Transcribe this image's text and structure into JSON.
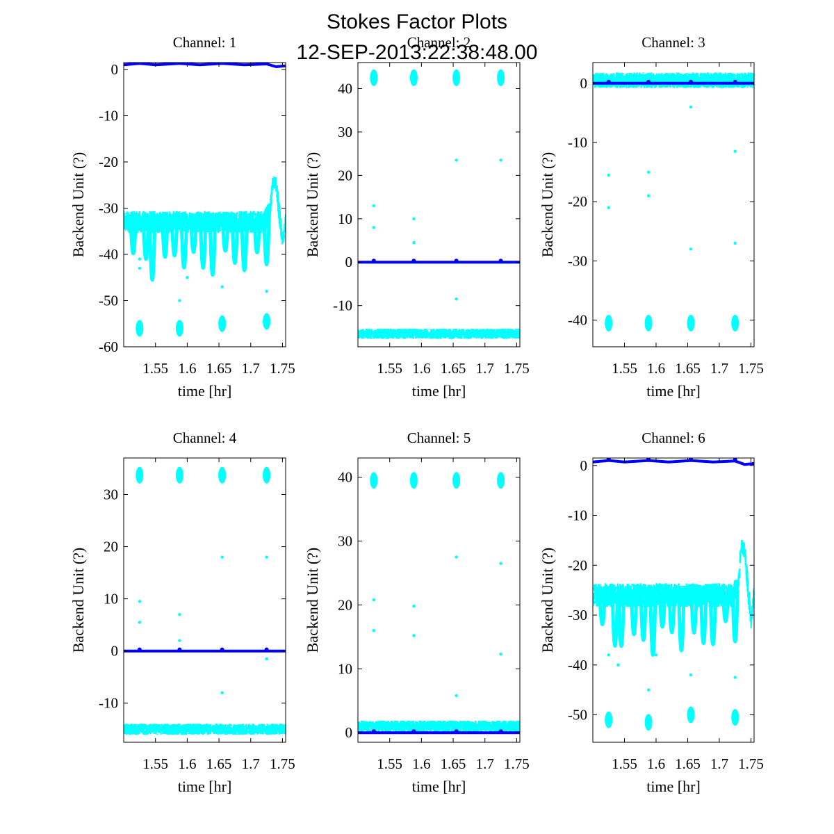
{
  "figure": {
    "title": "Stokes Factor Plots",
    "subtitle": "12-SEP-2013:22:38:48.00"
  },
  "colors": {
    "raw": "#00ffff",
    "smoothed": "#0000ff",
    "axes": "#000000",
    "background": "#ffffff"
  },
  "chart_data": [
    {
      "type": "scatter",
      "title": "Channel: 1",
      "xlabel": "time [hr]",
      "ylabel": "Backend Unit (?)",
      "xlim": [
        1.5,
        1.755
      ],
      "ylim": [
        -60,
        1.5
      ],
      "xticks": [
        1.55,
        1.6,
        1.65,
        1.7,
        1.75
      ],
      "xtick_labels": [
        "1.55",
        "1.6",
        "1.65",
        "1.7",
        "1.75"
      ],
      "yticks": [
        -60,
        -50,
        -40,
        -30,
        -20,
        -10,
        0
      ],
      "ytick_labels": [
        "-60",
        "-50",
        "-40",
        "-30",
        "-20",
        "-10",
        "0"
      ],
      "series": [
        {
          "color": "cyan",
          "x": [
            1.5,
            1.52,
            1.54,
            1.56,
            1.58,
            1.6,
            1.62,
            1.64,
            1.66,
            1.68,
            1.7,
            1.72,
            1.73,
            1.735,
            1.74,
            1.745,
            1.75,
            1.755
          ],
          "y": [
            -33,
            -33,
            -33,
            -33,
            -33,
            -33,
            -33,
            -33,
            -33,
            -33,
            -33,
            -33,
            -31,
            -24,
            -25,
            -31,
            -37,
            -33
          ],
          "spread": [
            4,
            4,
            4,
            4,
            4,
            4,
            4,
            4,
            4,
            4,
            4,
            4,
            4,
            2,
            3,
            4,
            3,
            3
          ],
          "clusters": [
            {
              "x": 1.525,
              "y": -56
            },
            {
              "x": 1.588,
              "y": -56
            },
            {
              "x": 1.655,
              "y": -55
            },
            {
              "x": 1.725,
              "y": -54.5
            }
          ],
          "outliers": [
            {
              "x": 1.525,
              "y": -43
            },
            {
              "x": 1.588,
              "y": -50
            },
            {
              "x": 1.655,
              "y": -47
            },
            {
              "x": 1.725,
              "y": -48
            },
            {
              "x": 1.525,
              "y": -41
            },
            {
              "x": 1.6,
              "y": -45
            }
          ]
        },
        {
          "color": "blue",
          "x": [
            1.5,
            1.525,
            1.55,
            1.588,
            1.62,
            1.655,
            1.69,
            1.725,
            1.74,
            1.755
          ],
          "y": [
            1,
            1.3,
            1,
            1.3,
            1,
            1.3,
            1,
            1.2,
            0.6,
            0.8
          ]
        }
      ]
    },
    {
      "type": "scatter",
      "title": "Channel: 2",
      "xlabel": "time [hr]",
      "ylabel": "Backend Unit (?)",
      "xlim": [
        1.5,
        1.755
      ],
      "ylim": [
        -19.5,
        46
      ],
      "xticks": [
        1.55,
        1.6,
        1.65,
        1.7,
        1.75
      ],
      "xtick_labels": [
        "1.55",
        "1.6",
        "1.65",
        "1.7",
        "1.75"
      ],
      "yticks": [
        -10,
        0,
        10,
        20,
        30,
        40
      ],
      "ytick_labels": [
        "-10",
        "0",
        "10",
        "20",
        "30",
        "40"
      ],
      "series": [
        {
          "color": "cyan",
          "x": [
            1.5,
            1.755
          ],
          "y": [
            -16.5,
            -16.5
          ],
          "spread": [
            2,
            2
          ],
          "clusters": [
            {
              "x": 1.525,
              "y": 42.5
            },
            {
              "x": 1.588,
              "y": 42.5
            },
            {
              "x": 1.655,
              "y": 42.5
            },
            {
              "x": 1.725,
              "y": 42.5
            }
          ],
          "outliers": [
            {
              "x": 1.525,
              "y": 13
            },
            {
              "x": 1.525,
              "y": 8
            },
            {
              "x": 1.588,
              "y": 10
            },
            {
              "x": 1.588,
              "y": 4.5
            },
            {
              "x": 1.655,
              "y": 23.5
            },
            {
              "x": 1.655,
              "y": -8.5
            },
            {
              "x": 1.725,
              "y": 23.5
            }
          ]
        },
        {
          "color": "blue",
          "x": [
            1.5,
            1.755
          ],
          "y": [
            0,
            0
          ]
        }
      ]
    },
    {
      "type": "scatter",
      "title": "Channel: 3",
      "xlabel": "time [hr]",
      "ylabel": "Backend Unit (?)",
      "xlim": [
        1.5,
        1.755
      ],
      "ylim": [
        -44.5,
        3.5
      ],
      "xticks": [
        1.55,
        1.6,
        1.65,
        1.7,
        1.75
      ],
      "xtick_labels": [
        "1.55",
        "1.6",
        "1.65",
        "1.7",
        "1.75"
      ],
      "yticks": [
        -40,
        -30,
        -20,
        -10,
        0
      ],
      "ytick_labels": [
        "-40",
        "-30",
        "-20",
        "-10",
        "0"
      ],
      "series": [
        {
          "color": "cyan",
          "x": [
            1.5,
            1.755
          ],
          "y": [
            0.5,
            0.5
          ],
          "spread": [
            2.2,
            2.2
          ],
          "clusters": [
            {
              "x": 1.525,
              "y": -40.5
            },
            {
              "x": 1.588,
              "y": -40.5
            },
            {
              "x": 1.655,
              "y": -40.5
            },
            {
              "x": 1.725,
              "y": -40.5
            }
          ],
          "outliers": [
            {
              "x": 1.525,
              "y": -15.5
            },
            {
              "x": 1.525,
              "y": -21
            },
            {
              "x": 1.588,
              "y": -15
            },
            {
              "x": 1.588,
              "y": -19
            },
            {
              "x": 1.655,
              "y": -4
            },
            {
              "x": 1.655,
              "y": -28
            },
            {
              "x": 1.725,
              "y": -11.5
            },
            {
              "x": 1.725,
              "y": -27
            }
          ]
        },
        {
          "color": "blue",
          "x": [
            1.5,
            1.755
          ],
          "y": [
            0,
            0
          ]
        }
      ]
    },
    {
      "type": "scatter",
      "title": "Channel: 4",
      "xlabel": "time [hr]",
      "ylabel": "Backend Unit (?)",
      "xlim": [
        1.5,
        1.755
      ],
      "ylim": [
        -17.5,
        37
      ],
      "xticks": [
        1.55,
        1.6,
        1.65,
        1.7,
        1.75
      ],
      "xtick_labels": [
        "1.55",
        "1.6",
        "1.65",
        "1.7",
        "1.75"
      ],
      "yticks": [
        -10,
        0,
        10,
        20,
        30
      ],
      "ytick_labels": [
        "-10",
        "0",
        "10",
        "20",
        "30"
      ],
      "series": [
        {
          "color": "cyan",
          "x": [
            1.5,
            1.755
          ],
          "y": [
            -15,
            -15
          ],
          "spread": [
            1.8,
            1.8
          ],
          "clusters": [
            {
              "x": 1.525,
              "y": 33.7
            },
            {
              "x": 1.588,
              "y": 33.7
            },
            {
              "x": 1.655,
              "y": 33.7
            },
            {
              "x": 1.725,
              "y": 33.7
            }
          ],
          "outliers": [
            {
              "x": 1.525,
              "y": 9.5
            },
            {
              "x": 1.525,
              "y": 5.5
            },
            {
              "x": 1.588,
              "y": 7
            },
            {
              "x": 1.588,
              "y": 2
            },
            {
              "x": 1.655,
              "y": 18
            },
            {
              "x": 1.655,
              "y": -8
            },
            {
              "x": 1.725,
              "y": 18
            },
            {
              "x": 1.725,
              "y": -1.5
            }
          ]
        },
        {
          "color": "blue",
          "x": [
            1.5,
            1.755
          ],
          "y": [
            0,
            0
          ]
        }
      ]
    },
    {
      "type": "scatter",
      "title": "Channel: 5",
      "xlabel": "time [hr]",
      "ylabel": "Backend Unit (?)",
      "xlim": [
        1.5,
        1.755
      ],
      "ylim": [
        -1.5,
        43
      ],
      "xticks": [
        1.55,
        1.6,
        1.65,
        1.7,
        1.75
      ],
      "xtick_labels": [
        "1.55",
        "1.6",
        "1.65",
        "1.7",
        "1.75"
      ],
      "yticks": [
        0,
        10,
        20,
        30,
        40
      ],
      "ytick_labels": [
        "0",
        "10",
        "20",
        "30",
        "40"
      ],
      "series": [
        {
          "color": "cyan",
          "x": [
            1.5,
            1.755
          ],
          "y": [
            1,
            1
          ],
          "spread": [
            1.5,
            1.5
          ],
          "clusters": [
            {
              "x": 1.525,
              "y": 39.5
            },
            {
              "x": 1.588,
              "y": 39.5
            },
            {
              "x": 1.655,
              "y": 39.5
            },
            {
              "x": 1.725,
              "y": 39.5
            }
          ],
          "outliers": [
            {
              "x": 1.525,
              "y": 20.8
            },
            {
              "x": 1.525,
              "y": 16
            },
            {
              "x": 1.588,
              "y": 19.8
            },
            {
              "x": 1.588,
              "y": 15.2
            },
            {
              "x": 1.655,
              "y": 27.5
            },
            {
              "x": 1.655,
              "y": 5.8
            },
            {
              "x": 1.725,
              "y": 26.5
            },
            {
              "x": 1.725,
              "y": 12.3
            }
          ]
        },
        {
          "color": "blue",
          "x": [
            1.5,
            1.755
          ],
          "y": [
            0,
            0
          ]
        }
      ]
    },
    {
      "type": "scatter",
      "title": "Channel: 6",
      "xlabel": "time [hr]",
      "ylabel": "Backend Unit (?)",
      "xlim": [
        1.5,
        1.755
      ],
      "ylim": [
        -55.5,
        1.5
      ],
      "xticks": [
        1.55,
        1.6,
        1.65,
        1.7,
        1.75
      ],
      "xtick_labels": [
        "1.55",
        "1.6",
        "1.65",
        "1.7",
        "1.75"
      ],
      "yticks": [
        -50,
        -40,
        -30,
        -20,
        -10,
        0
      ],
      "ytick_labels": [
        "-50",
        "-40",
        "-30",
        "-20",
        "-10",
        "0"
      ],
      "series": [
        {
          "color": "cyan",
          "x": [
            1.5,
            1.52,
            1.54,
            1.56,
            1.58,
            1.6,
            1.62,
            1.64,
            1.66,
            1.68,
            1.7,
            1.72,
            1.73,
            1.735,
            1.74,
            1.745,
            1.75,
            1.755
          ],
          "y": [
            -26,
            -26,
            -26,
            -26,
            -26,
            -26,
            -26,
            -26,
            -26,
            -26,
            -26,
            -26,
            -24,
            -16,
            -17,
            -24,
            -31,
            -26
          ],
          "spread": [
            4,
            4,
            4,
            4,
            4,
            4,
            4,
            4,
            4,
            4,
            4,
            4,
            4,
            2,
            3,
            4,
            3,
            3
          ],
          "clusters": [
            {
              "x": 1.525,
              "y": -51
            },
            {
              "x": 1.588,
              "y": -51.5
            },
            {
              "x": 1.655,
              "y": -50
            },
            {
              "x": 1.725,
              "y": -50.5
            }
          ],
          "outliers": [
            {
              "x": 1.525,
              "y": -38
            },
            {
              "x": 1.588,
              "y": -45
            },
            {
              "x": 1.655,
              "y": -42
            },
            {
              "x": 1.725,
              "y": -42.5
            },
            {
              "x": 1.54,
              "y": -40
            },
            {
              "x": 1.6,
              "y": -38
            }
          ]
        },
        {
          "color": "blue",
          "x": [
            1.5,
            1.525,
            1.55,
            1.588,
            1.62,
            1.655,
            1.69,
            1.725,
            1.74,
            1.755
          ],
          "y": [
            0.7,
            1,
            0.7,
            1,
            0.7,
            1,
            0.7,
            0.9,
            0.2,
            0.4
          ]
        }
      ]
    }
  ]
}
